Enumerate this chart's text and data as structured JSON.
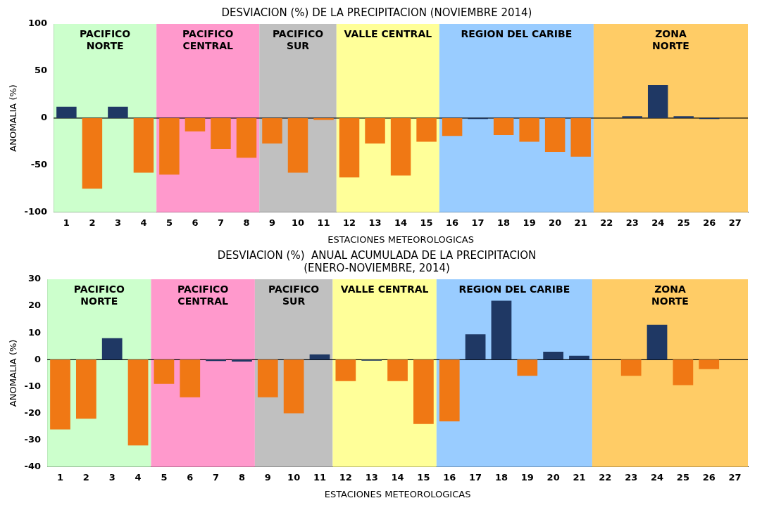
{
  "chart_data": [
    {
      "type": "bar",
      "title": "DESVIACION (%) DE LA PRECIPITACION (NOVIEMBRE 2014)",
      "xlabel": "ESTACIONES METEOROLOGICAS",
      "ylabel": "ANOMALIA (%)",
      "x": [
        1,
        2,
        3,
        4,
        5,
        6,
        7,
        8,
        9,
        10,
        11,
        12,
        13,
        14,
        15,
        16,
        17,
        18,
        19,
        20,
        21,
        22,
        23,
        24,
        25,
        26
      ],
      "values": [
        12,
        -75,
        12,
        -58,
        -60,
        -14,
        -33,
        -42,
        -27,
        -58,
        -2,
        -63,
        -27,
        -61,
        -25,
        -19,
        -1,
        -18,
        -25,
        -36,
        -41,
        null,
        2,
        35,
        2,
        -1
      ],
      "colors": [
        "#1f3864",
        "#f07814",
        "#1f3864",
        "#f07814",
        "#f07814",
        "#f07814",
        "#f07814",
        "#f07814",
        "#f07814",
        "#f07814",
        "#f07814",
        "#f07814",
        "#f07814",
        "#f07814",
        "#f07814",
        "#f07814",
        "#1f3864",
        "#f07814",
        "#f07814",
        "#f07814",
        "#f07814",
        "#1f3864",
        "#1f3864",
        "#1f3864",
        "#1f3864",
        "#1f3864"
      ],
      "xlim": [
        0.5,
        27.5
      ],
      "xticks": [
        1,
        2,
        3,
        4,
        5,
        6,
        7,
        8,
        9,
        10,
        11,
        12,
        13,
        14,
        15,
        16,
        17,
        18,
        19,
        20,
        21,
        22,
        23,
        24,
        25,
        26,
        27
      ],
      "ylim": [
        -100,
        100
      ],
      "yticks": [
        -100,
        -50,
        0,
        50,
        100
      ],
      "grid": false,
      "legend": false,
      "ref_lines": [
        {
          "axis": "y",
          "value": 0,
          "color": "#000000"
        }
      ],
      "bands": [
        {
          "axis": "x",
          "from": 0.5,
          "to": 4.5,
          "label": "PACIFICO\nNORTE",
          "color": "#ccffcc"
        },
        {
          "axis": "x",
          "from": 4.5,
          "to": 8.5,
          "label": "PACIFICO\nCENTRAL",
          "color": "#ff99cc"
        },
        {
          "axis": "x",
          "from": 8.5,
          "to": 11.5,
          "label": "PACIFICO\nSUR",
          "color": "#c0c0c0"
        },
        {
          "axis": "x",
          "from": 11.5,
          "to": 15.5,
          "label": "VALLE CENTRAL",
          "color": "#ffff99"
        },
        {
          "axis": "x",
          "from": 15.5,
          "to": 21.5,
          "label": "REGION DEL CARIBE",
          "color": "#99ccff"
        },
        {
          "axis": "x",
          "from": 21.5,
          "to": 27.5,
          "label": "ZONA\nNORTE",
          "color": "#ffcc66"
        }
      ]
    },
    {
      "type": "bar",
      "title": "DESVIACION (%)  ANUAL ACUMULADA DE LA PRECIPITACION\n(ENERO-NOVIEMBRE, 2014)",
      "xlabel": "ESTACIONES METEOROLOGICAS",
      "ylabel": "ANOMALIA (%)",
      "x": [
        1,
        2,
        3,
        4,
        5,
        6,
        7,
        8,
        9,
        10,
        11,
        12,
        13,
        14,
        15,
        16,
        17,
        18,
        19,
        20,
        21,
        22,
        23,
        24,
        25,
        26
      ],
      "values": [
        -26,
        -22,
        8,
        -32,
        -9,
        -14,
        -0.5,
        -0.7,
        -14,
        -20,
        2,
        -8,
        -0.4,
        -8,
        -24,
        -23,
        9.5,
        22,
        -6,
        3,
        1.5,
        null,
        -6,
        13,
        -9.5,
        -3.5
      ],
      "colors": [
        "#f07814",
        "#f07814",
        "#1f3864",
        "#f07814",
        "#f07814",
        "#f07814",
        "#1f3864",
        "#1f3864",
        "#f07814",
        "#f07814",
        "#1f3864",
        "#f07814",
        "#1f3864",
        "#f07814",
        "#f07814",
        "#f07814",
        "#1f3864",
        "#1f3864",
        "#f07814",
        "#1f3864",
        "#1f3864",
        "#1f3864",
        "#f07814",
        "#1f3864",
        "#f07814",
        "#f07814"
      ],
      "xlim": [
        0.5,
        27.5
      ],
      "xticks": [
        1,
        2,
        3,
        4,
        5,
        6,
        7,
        8,
        9,
        10,
        11,
        12,
        13,
        14,
        15,
        16,
        17,
        18,
        19,
        20,
        21,
        22,
        23,
        24,
        25,
        26,
        27
      ],
      "ylim": [
        -40,
        30
      ],
      "yticks": [
        -40,
        -30,
        -20,
        -10,
        0,
        10,
        20,
        30
      ],
      "grid": false,
      "legend": false,
      "ref_lines": [
        {
          "axis": "y",
          "value": 0,
          "color": "#000000"
        }
      ],
      "bands": [
        {
          "axis": "x",
          "from": 0.5,
          "to": 4.5,
          "label": "PACIFICO\nNORTE",
          "color": "#ccffcc"
        },
        {
          "axis": "x",
          "from": 4.5,
          "to": 8.5,
          "label": "PACIFICO\nCENTRAL",
          "color": "#ff99cc"
        },
        {
          "axis": "x",
          "from": 8.5,
          "to": 11.5,
          "label": "PACIFICO\nSUR",
          "color": "#c0c0c0"
        },
        {
          "axis": "x",
          "from": 11.5,
          "to": 15.5,
          "label": "VALLE CENTRAL",
          "color": "#ffff99"
        },
        {
          "axis": "x",
          "from": 15.5,
          "to": 21.5,
          "label": "REGION DEL CARIBE",
          "color": "#99ccff"
        },
        {
          "axis": "x",
          "from": 21.5,
          "to": 27.5,
          "label": "ZONA\nNORTE",
          "color": "#ffcc66"
        }
      ]
    }
  ]
}
